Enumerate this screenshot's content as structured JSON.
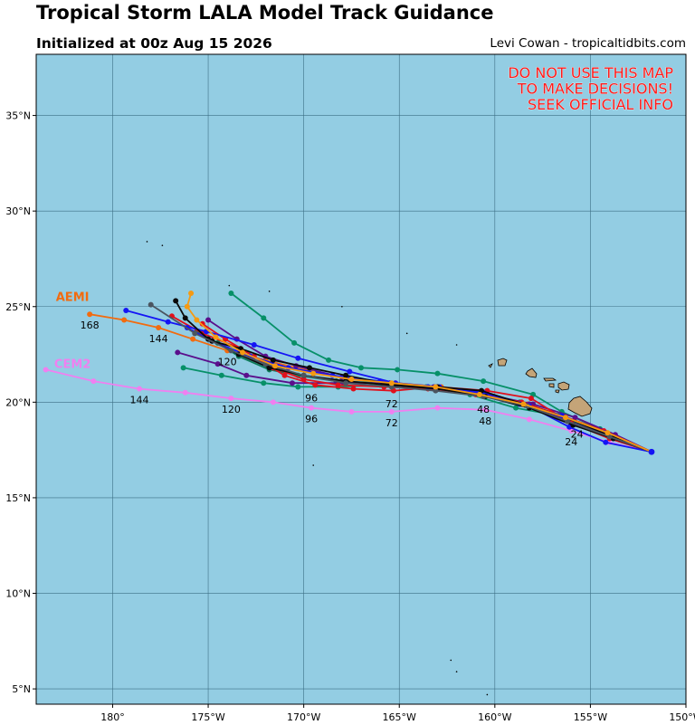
{
  "header": {
    "title": "Tropical Storm LALA Model Track Guidance",
    "subtitle": "Initialized at 00z Aug 15 2026",
    "credit": "Levi Cowan - tropicaltidbits.com"
  },
  "warning": {
    "lines": [
      "DO NOT USE THIS MAP",
      "TO MAKE DECISIONS!",
      "SEEK OFFICIAL INFO"
    ],
    "color": "#ff1a1a"
  },
  "colors": {
    "ocean": "#93cde3",
    "land": "#c4a478",
    "grid": "#3c6e84"
  },
  "map": {
    "lon_ticks": [
      "180°",
      "175°W",
      "170°W",
      "165°W",
      "160°W",
      "155°W",
      "150°W"
    ],
    "lat_ticks": [
      "5°N",
      "10°N",
      "15°N",
      "20°N",
      "25°N",
      "30°N",
      "35°N"
    ]
  },
  "chart_data": {
    "type": "line",
    "x_units": "longitude (deg, negative = W)",
    "y_units": "latitude (deg N)",
    "xlim": [
      -184,
      -150
    ],
    "ylim": [
      4.2,
      38.2
    ],
    "series": [
      {
        "name": "AEMI",
        "color": "#f26b0f",
        "points": [
          [
            -151.8,
            17.4
          ],
          [
            -154.0,
            18.2
          ],
          [
            -156.2,
            19.0
          ],
          [
            -158.3,
            19.9
          ],
          [
            -160.5,
            20.4
          ],
          [
            -162.8,
            20.8
          ],
          [
            -165.2,
            21.0
          ],
          [
            -167.7,
            21.2
          ],
          [
            -170.0,
            21.7
          ],
          [
            -172.0,
            22.2
          ],
          [
            -174.0,
            22.7
          ],
          [
            -175.8,
            23.3
          ],
          [
            -177.6,
            23.9
          ],
          [
            -179.4,
            24.3
          ],
          [
            -181.2,
            24.6
          ]
        ],
        "labels": [
          {
            "text": "168",
            "lon": -181.2,
            "lat": 24.6
          },
          {
            "text": "144",
            "lon": -177.6,
            "lat": 23.9
          },
          {
            "text": "120",
            "lon": -174.0,
            "lat": 22.7
          }
        ]
      },
      {
        "name": "CEM2",
        "color": "#f07ff0",
        "points": [
          [
            -151.8,
            17.4
          ],
          [
            -154.0,
            17.9
          ],
          [
            -156.0,
            18.5
          ],
          [
            -158.2,
            19.1
          ],
          [
            -160.5,
            19.6
          ],
          [
            -163.0,
            19.7
          ],
          [
            -165.4,
            19.5
          ],
          [
            -167.5,
            19.5
          ],
          [
            -169.6,
            19.7
          ],
          [
            -171.6,
            20.0
          ],
          [
            -173.8,
            20.2
          ],
          [
            -176.2,
            20.5
          ],
          [
            -178.6,
            20.7
          ],
          [
            -181.0,
            21.1
          ],
          [
            -183.5,
            21.7
          ]
        ],
        "labels": [
          {
            "text": "144",
            "lon": -178.6,
            "lat": 20.7
          },
          {
            "text": "120",
            "lon": -173.8,
            "lat": 20.2
          },
          {
            "text": "96",
            "lon": -169.6,
            "lat": 19.7
          },
          {
            "text": "72",
            "lon": -165.4,
            "lat": 19.5
          },
          {
            "text": "48",
            "lon": -160.5,
            "lat": 19.6
          },
          {
            "text": "24",
            "lon": -156.0,
            "lat": 18.5
          }
        ]
      },
      {
        "name": "",
        "color": "#079068",
        "points": [
          [
            -151.8,
            17.4
          ],
          [
            -154.5,
            18.6
          ],
          [
            -156.5,
            19.5
          ],
          [
            -158.0,
            20.4
          ],
          [
            -160.6,
            21.1
          ],
          [
            -163.0,
            21.5
          ],
          [
            -165.1,
            21.7
          ],
          [
            -167.0,
            21.8
          ],
          [
            -168.7,
            22.2
          ],
          [
            -170.5,
            23.1
          ],
          [
            -172.1,
            24.4
          ],
          [
            -173.8,
            25.7
          ]
        ]
      },
      {
        "name": "",
        "color": "#079068",
        "points": [
          [
            -151.8,
            17.4
          ],
          [
            -154.6,
            18.5
          ],
          [
            -156.7,
            19.3
          ],
          [
            -158.9,
            19.7
          ],
          [
            -161.3,
            20.4
          ],
          [
            -163.6,
            20.8
          ],
          [
            -166.0,
            20.9
          ],
          [
            -168.2,
            20.8
          ],
          [
            -170.3,
            20.8
          ],
          [
            -172.1,
            21.0
          ],
          [
            -174.3,
            21.4
          ],
          [
            -176.3,
            21.8
          ]
        ]
      },
      {
        "name": "",
        "color": "#0b7a58",
        "points": [
          [
            -151.8,
            17.4
          ],
          [
            -154.2,
            18.4
          ],
          [
            -156.5,
            19.3
          ],
          [
            -158.7,
            20.0
          ],
          [
            -161.0,
            20.5
          ],
          [
            -163.5,
            20.8
          ],
          [
            -166.0,
            21.0
          ],
          [
            -168.3,
            21.1
          ],
          [
            -170.3,
            21.4
          ],
          [
            -171.8,
            21.7
          ],
          [
            -173.4,
            22.4
          ],
          [
            -174.5,
            23.1
          ],
          [
            -175.6,
            23.7
          ]
        ]
      },
      {
        "name": "",
        "color": "#5a0f8c",
        "points": [
          [
            -151.8,
            17.4
          ],
          [
            -153.7,
            18.3
          ],
          [
            -155.8,
            19.2
          ],
          [
            -158.0,
            19.9
          ],
          [
            -160.4,
            20.4
          ],
          [
            -163.2,
            20.8
          ],
          [
            -165.5,
            21.0
          ],
          [
            -167.9,
            21.0
          ],
          [
            -170.6,
            21.0
          ],
          [
            -173.0,
            21.4
          ],
          [
            -174.5,
            22.0
          ],
          [
            -176.6,
            22.6
          ]
        ]
      },
      {
        "name": "",
        "color": "#5a0f8c",
        "points": [
          [
            -151.8,
            17.4
          ],
          [
            -154.0,
            18.2
          ],
          [
            -156.1,
            19.0
          ],
          [
            -158.2,
            19.9
          ],
          [
            -160.7,
            20.4
          ],
          [
            -163.1,
            20.8
          ],
          [
            -165.5,
            21.0
          ],
          [
            -168.0,
            21.3
          ],
          [
            -170.4,
            21.9
          ],
          [
            -172.0,
            22.4
          ],
          [
            -173.5,
            23.3
          ],
          [
            -175.0,
            24.3
          ]
        ]
      },
      {
        "name": "",
        "color": "#e0101c",
        "points": [
          [
            -151.8,
            17.4
          ],
          [
            -154.0,
            18.1
          ],
          [
            -156.0,
            18.9
          ],
          [
            -158.1,
            20.2
          ],
          [
            -160.4,
            20.6
          ],
          [
            -163.0,
            20.8
          ],
          [
            -165.3,
            20.6
          ],
          [
            -167.4,
            20.7
          ],
          [
            -169.4,
            20.9
          ],
          [
            -171.0,
            21.4
          ],
          [
            -172.6,
            22.4
          ],
          [
            -174.1,
            23.3
          ],
          [
            -175.3,
            24.1
          ]
        ]
      },
      {
        "name": "",
        "color": "#e0101c",
        "points": [
          [
            -151.8,
            17.4
          ],
          [
            -154.3,
            18.5
          ],
          [
            -156.5,
            19.3
          ],
          [
            -158.6,
            20.0
          ],
          [
            -161.0,
            20.4
          ],
          [
            -163.5,
            20.7
          ],
          [
            -165.8,
            20.8
          ],
          [
            -168.2,
            20.9
          ],
          [
            -170.0,
            21.2
          ],
          [
            -171.6,
            21.8
          ],
          [
            -173.3,
            22.8
          ],
          [
            -175.3,
            23.6
          ],
          [
            -176.9,
            24.5
          ]
        ]
      },
      {
        "name": "",
        "color": "#1414f5",
        "points": [
          [
            -151.8,
            17.4
          ],
          [
            -154.2,
            17.9
          ],
          [
            -156.1,
            18.7
          ],
          [
            -158.2,
            19.8
          ],
          [
            -160.6,
            20.5
          ],
          [
            -162.9,
            20.8
          ],
          [
            -165.2,
            21.0
          ],
          [
            -167.6,
            21.6
          ],
          [
            -170.3,
            22.3
          ],
          [
            -172.6,
            23.0
          ],
          [
            -175.1,
            23.7
          ],
          [
            -177.1,
            24.2
          ],
          [
            -179.3,
            24.8
          ]
        ]
      },
      {
        "name": "",
        "color": "#1414f5",
        "points": [
          [
            -151.8,
            17.4
          ],
          [
            -154.3,
            18.4
          ],
          [
            -156.5,
            19.3
          ],
          [
            -158.7,
            19.9
          ],
          [
            -161.1,
            20.5
          ],
          [
            -163.5,
            20.8
          ],
          [
            -166.0,
            21.1
          ],
          [
            -168.5,
            21.4
          ],
          [
            -170.8,
            21.8
          ],
          [
            -172.8,
            22.4
          ],
          [
            -174.8,
            23.2
          ],
          [
            -176.1,
            23.9
          ]
        ]
      },
      {
        "name": "",
        "color": "#0a0a0a",
        "points": [
          [
            -151.8,
            17.4
          ],
          [
            -153.8,
            18.1
          ],
          [
            -155.9,
            18.8
          ],
          [
            -158.2,
            19.7
          ],
          [
            -160.5,
            20.3
          ],
          [
            -163.0,
            20.7
          ],
          [
            -165.5,
            20.9
          ],
          [
            -167.8,
            21.1
          ],
          [
            -170.0,
            21.4
          ],
          [
            -171.8,
            21.8
          ],
          [
            -173.4,
            22.5
          ],
          [
            -175.0,
            23.3
          ],
          [
            -176.2,
            24.4
          ],
          [
            -176.7,
            25.3
          ]
        ]
      },
      {
        "name": "",
        "color": "#0a0a0a",
        "points": [
          [
            -151.8,
            17.4
          ],
          [
            -154.1,
            18.3
          ],
          [
            -156.3,
            19.2
          ],
          [
            -158.5,
            19.9
          ],
          [
            -160.7,
            20.6
          ],
          [
            -163.0,
            20.8
          ],
          [
            -165.3,
            20.9
          ],
          [
            -167.8,
            21.4
          ],
          [
            -169.7,
            21.8
          ],
          [
            -171.6,
            22.2
          ],
          [
            -173.3,
            22.8
          ],
          [
            -174.8,
            23.2
          ]
        ]
      },
      {
        "name": "",
        "color": "#4b5560",
        "points": [
          [
            -151.8,
            17.4
          ],
          [
            -154.0,
            18.2
          ],
          [
            -156.2,
            19.0
          ],
          [
            -158.3,
            19.8
          ],
          [
            -160.6,
            20.3
          ],
          [
            -163.1,
            20.6
          ],
          [
            -165.4,
            20.8
          ],
          [
            -167.8,
            21.0
          ],
          [
            -170.0,
            21.4
          ],
          [
            -172.0,
            22.0
          ],
          [
            -173.8,
            22.7
          ],
          [
            -175.7,
            23.6
          ],
          [
            -178.0,
            25.1
          ]
        ]
      },
      {
        "name": "",
        "color": "#f59a12",
        "points": [
          [
            -151.8,
            17.4
          ],
          [
            -154.1,
            18.4
          ],
          [
            -156.3,
            19.2
          ],
          [
            -158.5,
            19.9
          ],
          [
            -160.8,
            20.4
          ],
          [
            -163.1,
            20.8
          ],
          [
            -165.4,
            21.0
          ],
          [
            -167.5,
            21.2
          ],
          [
            -169.5,
            21.5
          ],
          [
            -171.5,
            21.9
          ],
          [
            -173.2,
            22.6
          ],
          [
            -174.6,
            23.4
          ],
          [
            -175.6,
            24.3
          ],
          [
            -176.1,
            25.0
          ],
          [
            -175.9,
            25.7
          ]
        ]
      }
    ],
    "series_labels": [
      {
        "text": "AEMI",
        "color": "#f26b0f",
        "lon": -182.1,
        "lat": 25.3
      },
      {
        "text": "CEM2",
        "color": "#f07ff0",
        "lon": -182.1,
        "lat": 21.8
      }
    ],
    "extra_labels": [
      {
        "text": "96",
        "lon": -169.6,
        "lat": 20.8
      },
      {
        "text": "72",
        "lon": -165.4,
        "lat": 20.5
      },
      {
        "text": "48",
        "lon": -160.6,
        "lat": 20.2
      },
      {
        "text": "24",
        "lon": -155.7,
        "lat": 18.9
      }
    ]
  }
}
